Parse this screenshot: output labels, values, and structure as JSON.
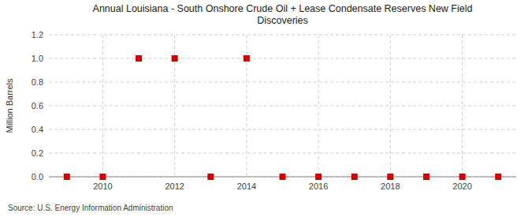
{
  "chart_data": {
    "type": "scatter",
    "title": "Annual Louisiana - South Onshore Crude Oil + Lease Condensate Reserves New Field\nDiscoveries",
    "y_label": "Million Barrels",
    "source": "Source: U.S. Energy Information Administration",
    "x": [
      2009,
      2010,
      2011,
      2012,
      2013,
      2014,
      2015,
      2016,
      2017,
      2018,
      2019,
      2020,
      2021
    ],
    "values": [
      0.0,
      0.0,
      1.0,
      1.0,
      0.0,
      1.0,
      0.0,
      0.0,
      0.0,
      0.0,
      0.0,
      0.0,
      0.0
    ],
    "color": "#cc0000",
    "marker": "square",
    "xlim": [
      2008.5,
      2021.5
    ],
    "ylim": [
      0.0,
      1.2
    ],
    "xticks": [
      2010,
      2012,
      2014,
      2016,
      2018,
      2020
    ],
    "yticks": [
      {
        "value": 0.0,
        "label": "0.0"
      },
      0.2,
      0.4,
      0.6,
      0.8,
      {
        "value": 1.0,
        "label": "1.0"
      },
      1.2
    ],
    "grid": true
  }
}
